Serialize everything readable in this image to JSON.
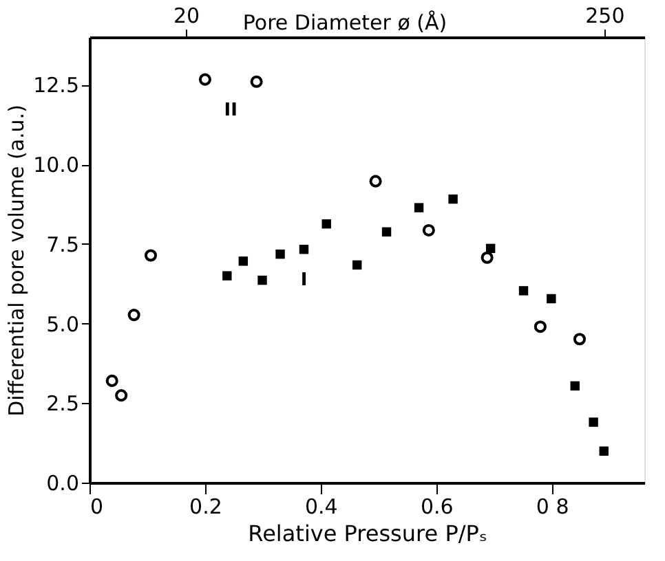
{
  "chart_data": {
    "type": "scatter",
    "xlabel": "Relative Pressure P/Pₛ",
    "ylabel": "Differential pore volume (a.u.)",
    "x2label": "Pore Diameter ø (Å)",
    "xlim": [
      0,
      0.96
    ],
    "ylim": [
      0,
      14
    ],
    "xticks": [
      0,
      0.2,
      0.4,
      0.6,
      {
        "value": 0.8,
        "label": "0 8"
      }
    ],
    "yticks": [
      {
        "value": 0,
        "label": "0.0"
      },
      2.5,
      {
        "value": 5,
        "label": "5.0"
      },
      7.5,
      {
        "value": 10,
        "label": "10.0"
      },
      12.5
    ],
    "x2lim": [
      -33,
      272
    ],
    "x2ticks": [
      20,
      250
    ],
    "grid": false,
    "series": [
      {
        "name": "II",
        "color": "#000000",
        "marker": "circle",
        "x": [
          0.039,
          0.055,
          0.077,
          0.106,
          0.2,
          0.289,
          0.495,
          0.587,
          0.688,
          0.78,
          0.848
        ],
        "values": [
          3.2,
          2.74,
          5.27,
          7.14,
          12.67,
          12.6,
          9.47,
          7.93,
          7.07,
          4.9,
          4.51
        ]
      },
      {
        "name": "I",
        "color": "#000000",
        "marker": "square",
        "x": [
          0.238,
          0.266,
          0.299,
          0.33,
          0.371,
          0.41,
          0.463,
          0.514,
          0.57,
          0.629,
          0.694,
          0.751,
          0.799,
          0.84,
          0.872,
          0.89
        ],
        "values": [
          6.5,
          6.96,
          6.36,
          7.18,
          7.33,
          8.13,
          6.84,
          7.88,
          8.64,
          8.91,
          7.36,
          6.03,
          5.78,
          3.04,
          1.9,
          0.99
        ]
      }
    ]
  }
}
